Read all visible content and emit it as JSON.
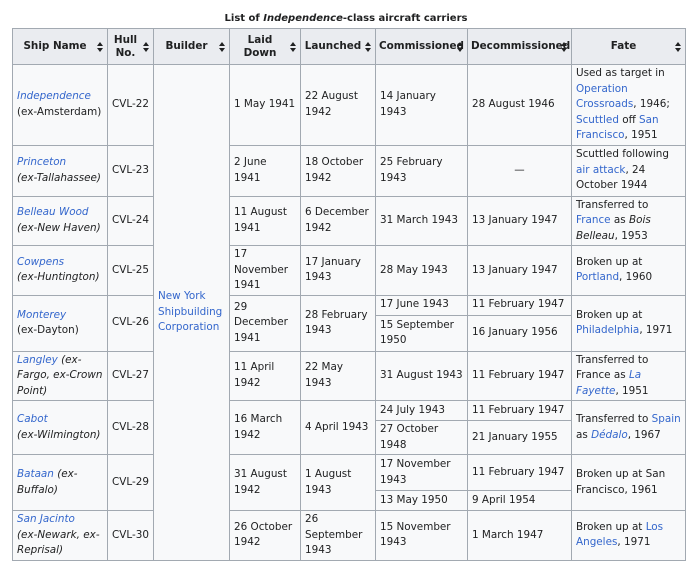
{
  "caption": {
    "pre": "List of ",
    "italic": "Independence",
    "post": "-class aircraft carriers"
  },
  "headers": {
    "ship_name": "Ship Name",
    "hull_no_1": "Hull",
    "hull_no_2": "No.",
    "builder": "Builder",
    "laid_down": "Laid Down",
    "launched": "Launched",
    "commissioned": "Commissioned",
    "decommissioned": "Decommissioned",
    "fate": "Fate"
  },
  "builder": {
    "l1": "New York",
    "l2": "Shipbuilding",
    "l3": "Corporation"
  },
  "rows": [
    {
      "name": "Independence",
      "alias": "(ex-Amsterdam)",
      "hull": "CVL-22",
      "laid": "1 May 1941",
      "launched": "22 August 1942",
      "commissioned": [
        "14 January 1943"
      ],
      "decommissioned": [
        "28 August 1946"
      ],
      "fate": {
        "a": "Used as target in ",
        "l1": "Operation Crossroads",
        "b": ", 1946; ",
        "l2": "Scuttled",
        "c": " off ",
        "l3": "San Francisco",
        "d": ", 1951"
      }
    },
    {
      "name": "Princeton",
      "alias": "(ex-Tallahassee)",
      "hull": "CVL-23",
      "laid": "2 June 1941",
      "launched": "18 October 1942",
      "commissioned": [
        "25 February 1943"
      ],
      "decommissioned": [
        "—"
      ],
      "fate": {
        "a": "Scuttled following ",
        "l1": "air attack",
        "b": ", 24 October 1944"
      }
    },
    {
      "name": "Belleau Wood",
      "alias": "(ex-New Haven)",
      "hull": "CVL-24",
      "laid": "11 August 1941",
      "launched": "6 December 1942",
      "commissioned": [
        "31 March 1943"
      ],
      "decommissioned": [
        "13 January 1947"
      ],
      "fate": {
        "a": "Transferred to ",
        "l1": "France",
        "b": " as ",
        "i1": "Bois Belleau",
        "c": ", 1953"
      }
    },
    {
      "name": "Cowpens",
      "alias": "(ex-Huntington)",
      "hull": "CVL-25",
      "laid": "17 November 1941",
      "launched": "17 January 1943",
      "commissioned": [
        "28 May 1943"
      ],
      "decommissioned": [
        "13 January 1947"
      ],
      "fate": {
        "a": "Broken up at ",
        "l1": "Portland",
        "b": ", 1960"
      }
    },
    {
      "name": "Monterey",
      "alias": "(ex-Dayton)",
      "hull": "CVL-26",
      "laid": "29 December 1941",
      "launched": "28 February 1943",
      "commissioned": [
        "17 June 1943",
        "15 September 1950"
      ],
      "decommissioned": [
        "11  February 1947",
        "16 January 1956"
      ],
      "fate": {
        "a": "Broken up at ",
        "l1": "Philadelphia",
        "b": ", 1971"
      }
    },
    {
      "name": "Langley",
      "alias": "(ex-Fargo, ex-Crown Point)",
      "hull": "CVL-27",
      "laid": "11 April 1942",
      "launched": "22 May 1943",
      "commissioned": [
        "31 August 1943"
      ],
      "decommissioned": [
        "11 February 1947"
      ],
      "fate": {
        "a": "Transferred to France as ",
        "l1": "La Fayette",
        "b": ", 1951"
      }
    },
    {
      "name": "Cabot",
      "alias": "(ex-Wilmington)",
      "hull": "CVL-28",
      "laid": "16 March 1942",
      "launched": "4 April 1943",
      "commissioned": [
        "24 July 1943",
        "27 October 1948"
      ],
      "decommissioned": [
        "11 February 1947",
        "21 January 1955"
      ],
      "fate": {
        "a": "Transferred to ",
        "l1": "Spain",
        "b": " as ",
        "l2": "Dédalo",
        "c": ", 1967"
      }
    },
    {
      "name": "Bataan",
      "alias": "(ex-Buffalo)",
      "hull": "CVL-29",
      "laid": "31 August 1942",
      "launched": "1 August 1943",
      "commissioned": [
        "17 November 1943",
        "13 May 1950"
      ],
      "decommissioned": [
        "11 February 1947",
        "9 April 1954"
      ],
      "fate": {
        "a": "Broken up at San Francisco, 1961"
      }
    },
    {
      "name": "San Jacinto",
      "alias": "(ex-Newark, ex-Reprisal)",
      "hull": "CVL-30",
      "laid": "26 October 1942",
      "launched": "26 September 1943",
      "commissioned": [
        "15 November 1943"
      ],
      "decommissioned": [
        "1  March 1947"
      ],
      "fate": {
        "a": "Broken up at ",
        "l1": "Los Angeles",
        "b": ", 1971"
      }
    }
  ],
  "colors": {
    "link": "#3366cc",
    "header_bg": "#eaecf0",
    "cell_bg": "#f8f9fa",
    "border": "#a2a9b1"
  }
}
